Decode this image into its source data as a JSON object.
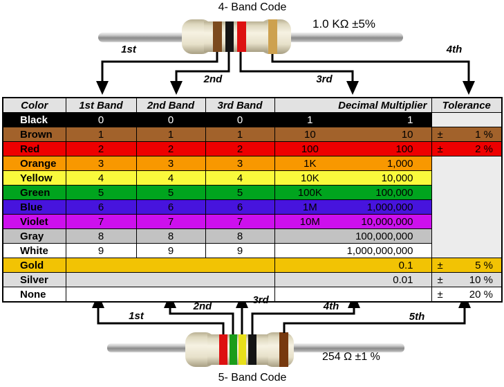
{
  "top_resistor": {
    "title": "4- Band Code",
    "value_label": "1.0 KΩ  ±5%",
    "bands": [
      {
        "name": "brown",
        "color": "#7b4a1e"
      },
      {
        "name": "black",
        "color": "#141414"
      },
      {
        "name": "red",
        "color": "#dd1111"
      },
      {
        "name": "gold",
        "color": "#cda14f"
      }
    ],
    "arrows": [
      "1st",
      "2nd",
      "3rd",
      "4th"
    ]
  },
  "bottom_resistor": {
    "title": "5- Band Code",
    "value_label": "254 Ω  ±1 %",
    "bands": [
      {
        "name": "red",
        "color": "#dd1111"
      },
      {
        "name": "green",
        "color": "#1a9c1a"
      },
      {
        "name": "yellow",
        "color": "#e8df1a"
      },
      {
        "name": "black",
        "color": "#141414"
      },
      {
        "name": "brown",
        "color": "#77390f"
      }
    ],
    "arrows": [
      "1st",
      "2nd",
      "3rd",
      "4th",
      "5th"
    ]
  },
  "table": {
    "headers": [
      "Color",
      "1st Band",
      "2nd Band",
      "3rd Band",
      "Decimal Multiplier",
      "Tolerance"
    ],
    "plus_minus": "±",
    "empty_cell_color": "#ececec",
    "rows": [
      {
        "name": "Black",
        "bg": "#000000",
        "fg": "#ffffff",
        "bands": [
          "0",
          "0",
          "0"
        ],
        "mult_short": "1",
        "mult_long": "1",
        "tol": null
      },
      {
        "name": "Brown",
        "bg": "#a2622b",
        "fg": "#000000",
        "bands": [
          "1",
          "1",
          "1"
        ],
        "mult_short": "10",
        "mult_long": "10",
        "tol": "1 %"
      },
      {
        "name": "Red",
        "bg": "#ee0000",
        "fg": "#000000",
        "bands": [
          "2",
          "2",
          "2"
        ],
        "mult_short": "100",
        "mult_long": "100",
        "tol": "2 %"
      },
      {
        "name": "Orange",
        "bg": "#f89800",
        "fg": "#000000",
        "bands": [
          "3",
          "3",
          "3"
        ],
        "mult_short": "1K",
        "mult_long": "1,000",
        "tol": null
      },
      {
        "name": "Yellow",
        "bg": "#fafa3c",
        "fg": "#000000",
        "bands": [
          "4",
          "4",
          "4"
        ],
        "mult_short": "10K",
        "mult_long": "10,000",
        "tol": null
      },
      {
        "name": "Green",
        "bg": "#00a41e",
        "fg": "#000000",
        "bands": [
          "5",
          "5",
          "5"
        ],
        "mult_short": "100K",
        "mult_long": "100,000",
        "tol": null
      },
      {
        "name": "Blue",
        "bg": "#4714dd",
        "fg": "#000000",
        "bands": [
          "6",
          "6",
          "6"
        ],
        "mult_short": "1M",
        "mult_long": "1,000,000",
        "tol": null
      },
      {
        "name": "Violet",
        "bg": "#cd10ed",
        "fg": "#000000",
        "bands": [
          "7",
          "7",
          "7"
        ],
        "mult_short": "10M",
        "mult_long": "10,000,000",
        "tol": null
      },
      {
        "name": "Gray",
        "bg": "#c2c2c2",
        "fg": "#000000",
        "bands": [
          "8",
          "8",
          "8"
        ],
        "mult_short": "",
        "mult_long": "100,000,000",
        "tol": null
      },
      {
        "name": "White",
        "bg": "#ffffff",
        "fg": "#000000",
        "bands": [
          "9",
          "9",
          "9"
        ],
        "mult_short": "",
        "mult_long": "1,000,000,000",
        "tol": null
      },
      {
        "name": "Gold",
        "bg": "#f2c304",
        "fg": "#000000",
        "merged_bands": true,
        "mult_long": "0.1",
        "tol": "5 %"
      },
      {
        "name": "Silver",
        "bg": "#dcdcdc",
        "fg": "#000000",
        "merged_bands": true,
        "mult_long": "0.01",
        "tol": "10 %"
      },
      {
        "name": "None",
        "bg": "#ffffff",
        "fg": "#000000",
        "merged_bands": true,
        "mult_long": "",
        "tol": "20 %"
      }
    ]
  }
}
